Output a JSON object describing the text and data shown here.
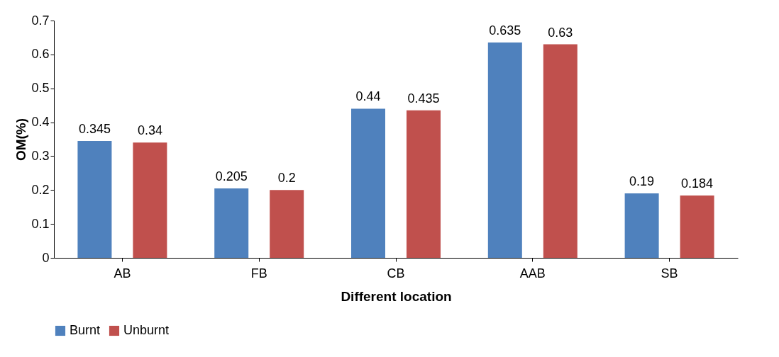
{
  "chart_data": {
    "type": "bar",
    "xlabel": "Different location",
    "ylabel": "OM(%)",
    "categories": [
      "AB",
      "FB",
      "CB",
      "AAB",
      "SB"
    ],
    "series": [
      {
        "name": "Burnt",
        "color": "#4f81bd",
        "values": [
          0.345,
          0.205,
          0.44,
          0.635,
          0.19
        ]
      },
      {
        "name": "Unburnt",
        "color": "#c0504d",
        "values": [
          0.34,
          0.2,
          0.435,
          0.63,
          0.184
        ]
      }
    ],
    "ylim": [
      0,
      0.7
    ],
    "yticks": [
      0,
      0.1,
      0.2,
      0.3,
      0.4,
      0.5,
      0.6,
      0.7
    ],
    "data_labels": true,
    "grid": false,
    "legend": "bottom"
  }
}
